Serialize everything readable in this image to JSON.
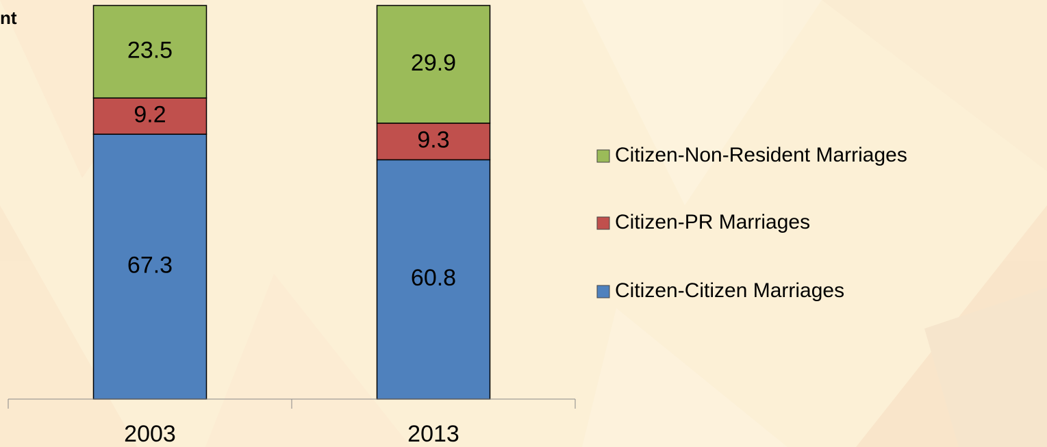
{
  "chart_data": {
    "type": "stacked_bar",
    "y_label": "nt",
    "categories": [
      "2003",
      "2013"
    ],
    "series": [
      {
        "name": "Citizen-Citizen Marriages",
        "color": "#4f81bd",
        "values": [
          67.3,
          60.8
        ]
      },
      {
        "name": "Citizen-PR Marriages",
        "color": "#c0504d",
        "values": [
          9.2,
          9.3
        ]
      },
      {
        "name": "Citizen-Non-Resident Marriages",
        "color": "#9bbb59",
        "values": [
          23.5,
          29.9
        ]
      }
    ],
    "ylim": [
      0,
      100
    ]
  }
}
